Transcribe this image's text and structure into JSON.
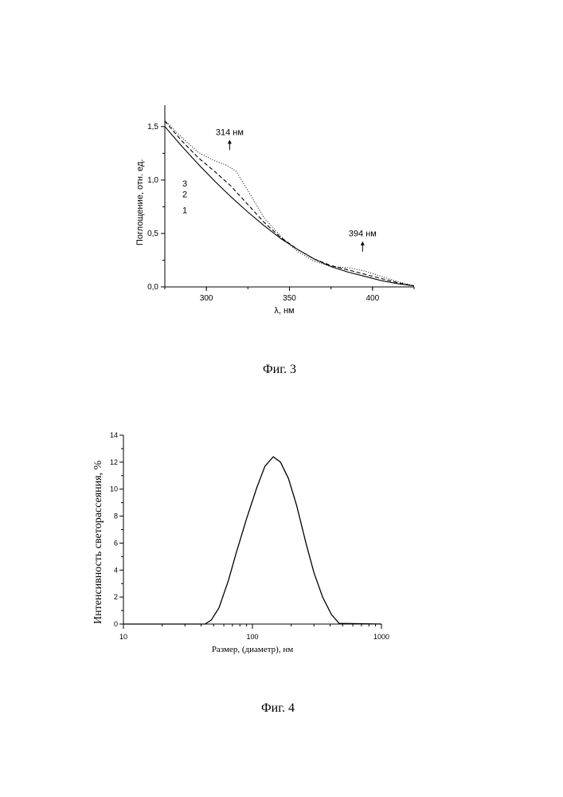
{
  "chart_data": [
    {
      "type": "line",
      "title": "",
      "xlabel": "λ, нм",
      "ylabel": "Поглощение, отн. ед.",
      "xlim": [
        275,
        425
      ],
      "ylim": [
        0,
        1.7
      ],
      "x_ticks": [
        {
          "v": 300,
          "label": "300"
        },
        {
          "v": 350,
          "label": "350"
        },
        {
          "v": 400,
          "label": "400"
        }
      ],
      "y_ticks": [
        {
          "v": 0,
          "label": "0,0"
        },
        {
          "v": 0.5,
          "label": "0,5"
        },
        {
          "v": 1.0,
          "label": "1,0"
        },
        {
          "v": 1.5,
          "label": "1,5"
        }
      ],
      "series": [
        {
          "name": "1",
          "style": "solid",
          "x": [
            275,
            285,
            295,
            305,
            315,
            325,
            335,
            345,
            355,
            365,
            375,
            385,
            395,
            405,
            415,
            425
          ],
          "y": [
            1.5,
            1.32,
            1.15,
            0.99,
            0.84,
            0.7,
            0.57,
            0.45,
            0.35,
            0.26,
            0.19,
            0.14,
            0.1,
            0.06,
            0.03,
            0.01
          ]
        },
        {
          "name": "2",
          "style": "dashed",
          "x": [
            275,
            285,
            295,
            305,
            315,
            325,
            335,
            345,
            355,
            365,
            375,
            385,
            395,
            405,
            415,
            425
          ],
          "y": [
            1.55,
            1.37,
            1.21,
            1.08,
            0.94,
            0.77,
            0.6,
            0.46,
            0.35,
            0.26,
            0.2,
            0.16,
            0.12,
            0.08,
            0.04,
            0.01
          ]
        },
        {
          "name": "3",
          "style": "dotted",
          "x": [
            275,
            285,
            295,
            305,
            312,
            318,
            325,
            335,
            345,
            355,
            365,
            375,
            385,
            395,
            405,
            415,
            425
          ],
          "y": [
            1.56,
            1.4,
            1.26,
            1.18,
            1.14,
            1.08,
            0.9,
            0.64,
            0.47,
            0.33,
            0.24,
            0.19,
            0.18,
            0.15,
            0.1,
            0.05,
            0.01
          ]
        }
      ],
      "annotations": [
        {
          "text": "314 нм",
          "x": 314,
          "y": 1.28
        },
        {
          "text": "394 нм",
          "x": 394,
          "y": 0.33
        }
      ],
      "caption": "Фиг. 3"
    },
    {
      "type": "line",
      "title": "",
      "xlabel": "Размер, (диаметр), нм",
      "ylabel": "Интенсивность светорассеяния, %",
      "x_scale": "log",
      "xlim": [
        10,
        1000
      ],
      "ylim": [
        0,
        14
      ],
      "x_ticks": [
        {
          "v": 10,
          "label": "10"
        },
        {
          "v": 100,
          "label": "100"
        },
        {
          "v": 1000,
          "label": "1000"
        }
      ],
      "y_ticks": [
        {
          "v": 0,
          "label": "0"
        },
        {
          "v": 2,
          "label": "2"
        },
        {
          "v": 4,
          "label": "4"
        },
        {
          "v": 6,
          "label": "6"
        },
        {
          "v": 8,
          "label": "8"
        },
        {
          "v": 10,
          "label": "10"
        },
        {
          "v": 12,
          "label": "12"
        },
        {
          "v": 14,
          "label": "14"
        }
      ],
      "series": [
        {
          "name": "",
          "style": "solid",
          "x": [
            10,
            43,
            48,
            55,
            65,
            75,
            90,
            108,
            125,
            145,
            165,
            190,
            220,
            260,
            300,
            350,
            410,
            470,
            1000
          ],
          "y": [
            0,
            0,
            0.3,
            1.2,
            3.2,
            5.3,
            7.8,
            10.1,
            11.7,
            12.4,
            12.0,
            10.8,
            8.8,
            6.0,
            3.8,
            2.0,
            0.7,
            0.05,
            0
          ]
        }
      ],
      "caption": "Фиг. 4"
    }
  ]
}
